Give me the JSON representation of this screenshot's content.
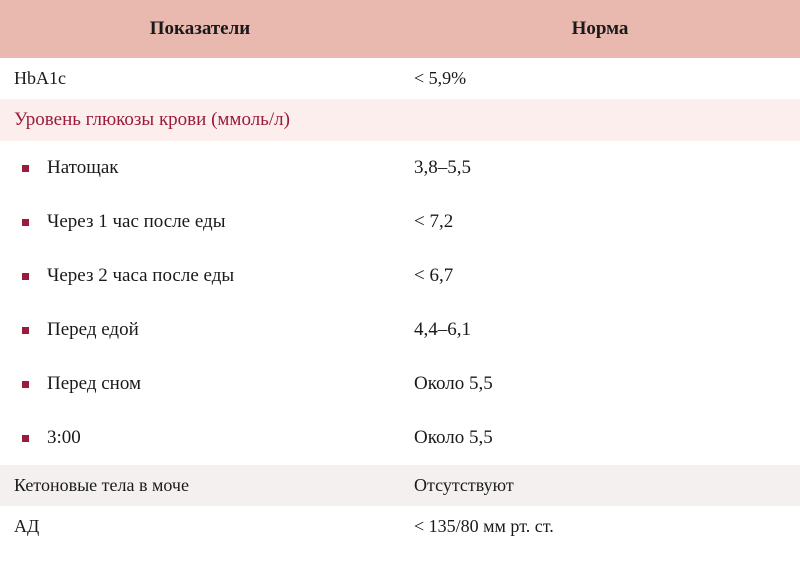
{
  "colors": {
    "header_bg": "#e9b9b0",
    "section_bg": "#fbeeed",
    "section_text": "#9b1b3a",
    "bullet": "#9b1b3a",
    "shaded_bg": "#f4f0ef",
    "text": "#1a1a1a",
    "white": "#ffffff"
  },
  "header": {
    "col1": "Показатели",
    "col2": "Норма"
  },
  "rows": {
    "hba1c": {
      "label": "HbA1c",
      "value": "< 5,9%"
    },
    "section": "Уровень глюкозы крови (ммоль/л)",
    "bullets": [
      {
        "label": "Натощак",
        "value": "3,8–5,5"
      },
      {
        "label": "Через 1 час после еды",
        "value": "< 7,2"
      },
      {
        "label": "Через 2 часа после еды",
        "value": "< 6,7"
      },
      {
        "label": "Перед едой",
        "value": "4,4–6,1"
      },
      {
        "label": "Перед сном",
        "value": "Около 5,5"
      },
      {
        "label": "3:00",
        "value": "Около 5,5"
      }
    ],
    "ketones": {
      "label": "Кетоновые тела в моче",
      "value": "Отсутствуют"
    },
    "bp": {
      "label": "АД",
      "value": "< 135/80 мм рт. ст."
    }
  }
}
